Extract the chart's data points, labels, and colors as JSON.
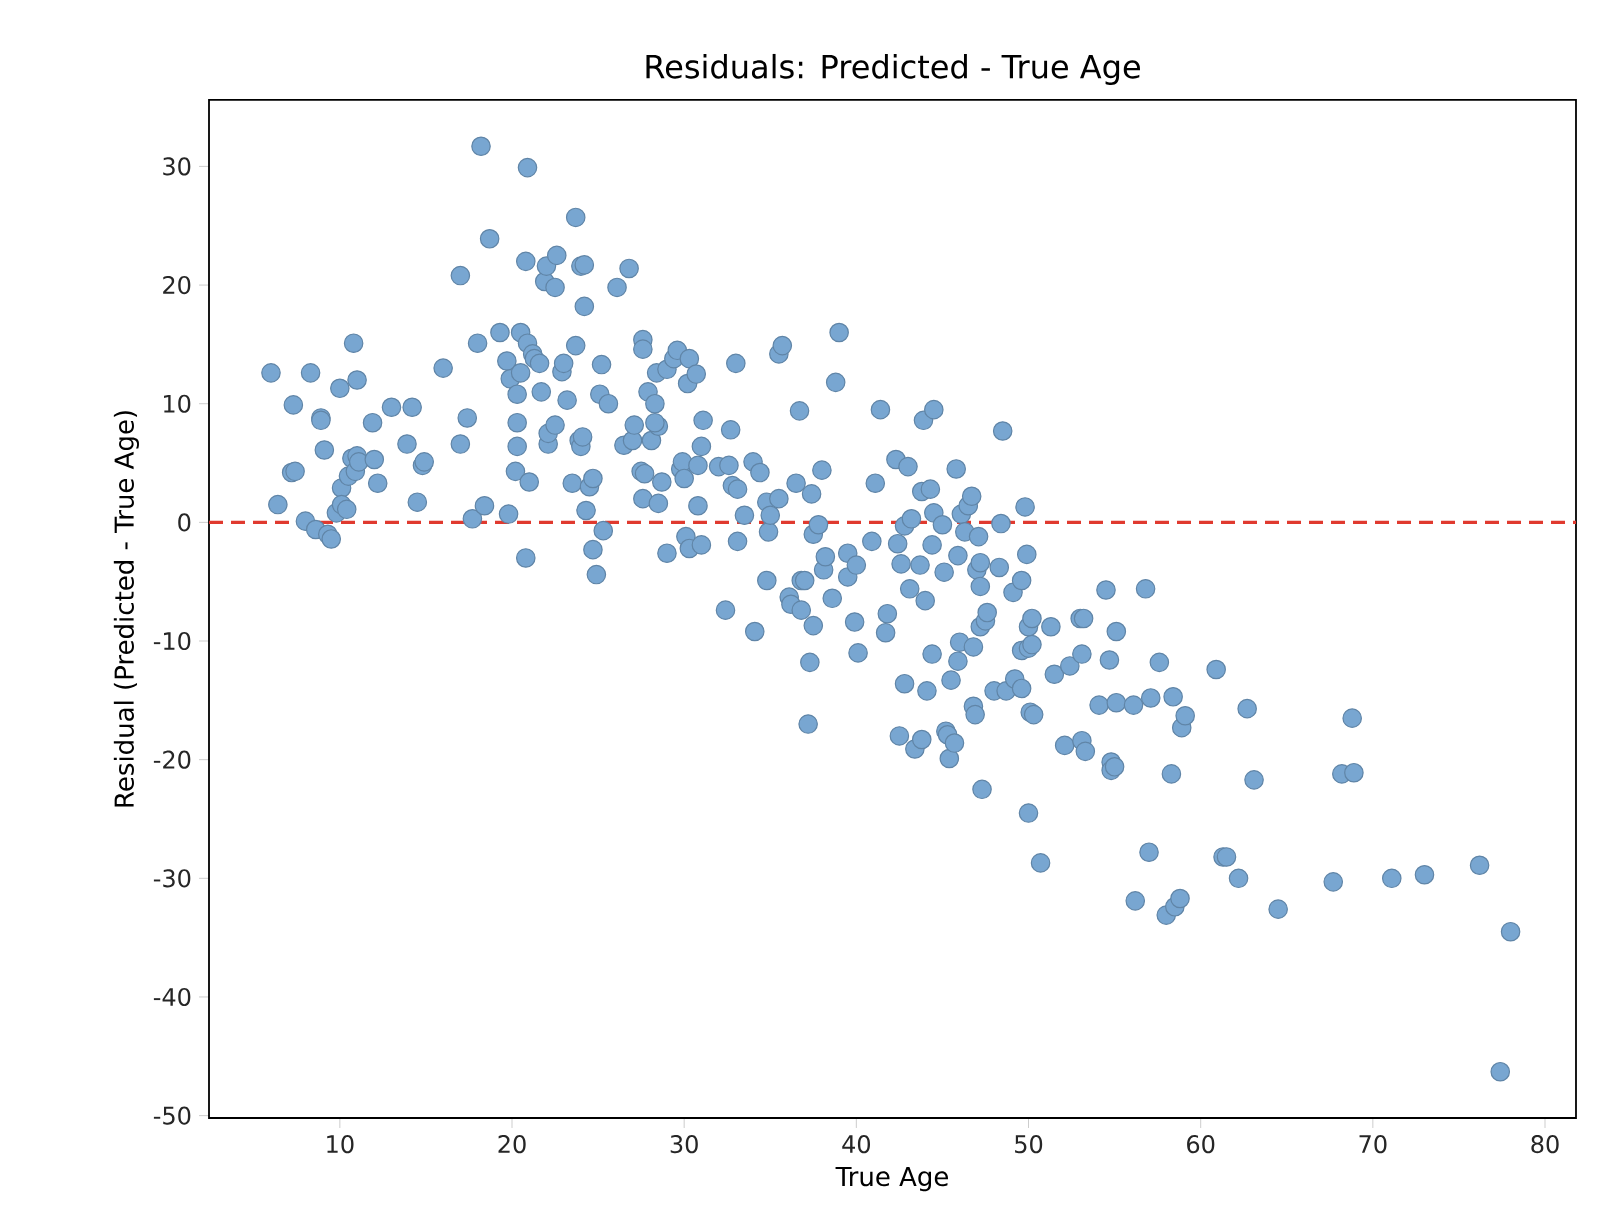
{
  "chart_data": {
    "type": "scatter",
    "title": "Residuals: Predicted - True Age",
    "xlabel": "True Age",
    "ylabel": "Residual (Predicted - True Age)",
    "x": [
      6.0,
      6.4,
      7.3,
      7.2,
      7.4,
      8.3,
      8.0,
      8.9,
      8.9,
      9.1,
      8.6,
      9.3,
      9.5,
      10.0,
      10.1,
      9.8,
      10.1,
      10.4,
      10.5,
      10.8,
      11.0,
      10.7,
      11.0,
      10.9,
      11.1,
      11.9,
      12.0,
      12.2,
      13.0,
      13.9,
      14.2,
      14.8,
      14.9,
      14.5,
      16.0,
      17.0,
      17.0,
      17.4,
      17.7,
      18.0,
      18.2,
      18.4,
      18.7,
      19.3,
      19.7,
      19.8,
      19.9,
      20.2,
      20.3,
      20.3,
      20.3,
      20.5,
      20.5,
      20.8,
      20.9,
      20.8,
      21.0,
      20.9,
      21.2,
      21.3,
      21.6,
      21.7,
      21.9,
      22.0,
      22.1,
      22.1,
      22.5,
      22.6,
      22.5,
      22.9,
      23.0,
      23.2,
      23.5,
      23.7,
      23.7,
      23.9,
      24.0,
      24.2,
      24.2,
      24.0,
      24.1,
      24.3,
      24.5,
      24.7,
      24.7,
      24.9,
      25.1,
      25.2,
      25.3,
      25.6,
      26.1,
      26.5,
      26.8,
      27.0,
      27.1,
      27.6,
      27.6,
      27.5,
      27.7,
      27.6,
      27.9,
      28.1,
      28.3,
      28.5,
      28.4,
      28.3,
      28.5,
      28.7,
      29.0,
      29.0,
      29.4,
      29.6,
      29.8,
      29.9,
      30.0,
      30.2,
      30.3,
      30.1,
      30.3,
      30.7,
      30.8,
      31.0,
      31.1,
      31.0,
      30.8,
      32.0,
      32.4,
      32.6,
      32.7,
      32.8,
      33.1,
      33.0,
      33.1,
      33.5,
      34.0,
      34.1,
      34.4,
      34.8,
      34.8,
      34.9,
      35.0,
      35.5,
      35.5,
      35.7,
      36.1,
      36.2,
      36.5,
      36.8,
      36.8,
      36.7,
      37.0,
      37.2,
      37.3,
      37.4,
      37.5,
      37.5,
      37.8,
      38.0,
      38.1,
      38.2,
      38.6,
      38.8,
      39.0,
      39.5,
      39.5,
      39.9,
      40.0,
      40.1,
      40.9,
      41.1,
      41.4,
      41.7,
      41.8,
      42.3,
      42.5,
      42.4,
      42.6,
      42.8,
      42.8,
      43.0,
      43.1,
      43.2,
      43.4,
      43.7,
      43.8,
      43.8,
      43.9,
      44.0,
      44.1,
      44.3,
      44.4,
      44.4,
      44.5,
      44.5,
      45.1,
      45.0,
      45.2,
      45.3,
      45.4,
      45.5,
      45.7,
      45.9,
      45.9,
      45.8,
      46.0,
      46.1,
      46.3,
      46.5,
      46.7,
      46.8,
      46.8,
      46.9,
      47.0,
      47.1,
      47.2,
      47.2,
      47.2,
      47.3,
      47.5,
      47.6,
      48.0,
      48.3,
      48.4,
      48.5,
      48.7,
      49.1,
      49.2,
      49.6,
      49.6,
      49.6,
      49.8,
      49.9,
      50.0,
      50.0,
      50.0,
      50.2,
      50.2,
      50.1,
      50.3,
      50.7,
      51.3,
      51.5,
      52.1,
      52.4,
      53.0,
      53.1,
      53.1,
      53.2,
      53.3,
      54.1,
      54.5,
      54.7,
      54.8,
      54.8,
      55.0,
      55.1,
      55.1,
      56.1,
      56.2,
      56.8,
      57.0,
      57.1,
      57.6,
      58.0,
      58.3,
      58.4,
      58.5,
      58.8,
      58.9,
      59.1,
      60.9,
      61.3,
      61.5,
      62.2,
      62.7,
      63.1,
      64.5,
      67.7,
      68.2,
      68.8,
      68.9,
      71.1,
      73.0,
      76.2,
      77.4,
      78.0
    ],
    "values": [
      12.6,
      1.5,
      9.9,
      4.2,
      4.3,
      12.6,
      0.1,
      8.8,
      8.6,
      6.1,
      -0.6,
      -1.0,
      -1.4,
      11.3,
      2.9,
      0.8,
      1.5,
      1.1,
      3.9,
      15.1,
      12.0,
      5.4,
      5.6,
      4.3,
      5.1,
      8.4,
      5.3,
      3.3,
      9.7,
      6.6,
      9.7,
      4.8,
      5.1,
      1.7,
      13.0,
      20.8,
      6.6,
      8.8,
      0.3,
      15.1,
      31.7,
      1.4,
      23.9,
      16.0,
      13.6,
      0.7,
      12.1,
      4.3,
      8.4,
      6.4,
      10.8,
      16.0,
      12.6,
      -3.0,
      29.9,
      22.0,
      3.4,
      15.1,
      14.2,
      13.8,
      13.4,
      11.0,
      20.3,
      21.6,
      6.6,
      7.5,
      19.8,
      22.5,
      8.2,
      12.7,
      13.4,
      10.3,
      3.3,
      25.7,
      14.9,
      6.9,
      21.6,
      21.7,
      18.2,
      6.4,
      7.2,
      1.0,
      3.0,
      -2.3,
      3.7,
      -4.4,
      10.8,
      13.3,
      -0.7,
      10.0,
      19.8,
      6.5,
      21.4,
      6.9,
      8.2,
      15.4,
      14.6,
      4.3,
      4.1,
      2.0,
      11.0,
      6.9,
      10.0,
      8.1,
      12.6,
      8.4,
      1.6,
      3.4,
      12.9,
      -2.6,
      13.8,
      14.5,
      4.5,
      5.1,
      3.7,
      11.7,
      13.8,
      -1.2,
      -2.2,
      12.5,
      1.4,
      6.4,
      8.6,
      -1.9,
      4.8,
      4.7,
      -7.4,
      4.8,
      7.8,
      3.1,
      2.8,
      13.4,
      -1.6,
      0.6,
      5.1,
      -9.2,
      4.2,
      -4.9,
      1.7,
      -0.8,
      0.6,
      2.0,
      14.2,
      14.9,
      -6.3,
      -6.9,
      3.3,
      -7.4,
      -4.9,
      9.4,
      -4.9,
      -17.0,
      -11.8,
      2.4,
      -8.7,
      -1.0,
      -0.2,
      4.4,
      -4.0,
      -2.9,
      -6.4,
      11.8,
      16.0,
      -2.6,
      -4.6,
      -8.4,
      -3.6,
      -11.0,
      -1.6,
      3.3,
      9.5,
      -9.3,
      -7.7,
      5.3,
      -18.0,
      -1.8,
      -3.5,
      -13.6,
      -0.3,
      4.7,
      -5.6,
      0.3,
      -19.1,
      -3.6,
      -18.3,
      2.6,
      8.6,
      -6.6,
      -14.2,
      2.8,
      -1.9,
      -11.1,
      9.5,
      0.8,
      -4.2,
      -0.2,
      -17.6,
      -17.9,
      -19.9,
      -13.3,
      -18.6,
      -11.7,
      -2.8,
      4.5,
      -10.1,
      0.7,
      -0.8,
      1.4,
      2.2,
      -15.5,
      -10.5,
      -16.2,
      -4.0,
      -1.2,
      -3.4,
      -5.4,
      -8.8,
      -22.5,
      -8.3,
      -7.6,
      -14.2,
      -3.8,
      -0.1,
      7.7,
      -14.2,
      -5.9,
      -13.2,
      -4.9,
      -10.8,
      -14.0,
      1.3,
      -2.7,
      -8.8,
      -10.6,
      -24.5,
      -8.1,
      -10.3,
      -16.0,
      -16.2,
      -28.7,
      -8.8,
      -12.8,
      -18.8,
      -12.1,
      -8.1,
      -18.4,
      -11.1,
      -8.1,
      -19.3,
      -15.4,
      -5.7,
      -11.6,
      -20.2,
      -20.9,
      -20.6,
      -15.2,
      -9.2,
      -15.4,
      -31.9,
      -5.6,
      -27.8,
      -14.8,
      -11.8,
      -33.1,
      -21.2,
      -14.7,
      -32.4,
      -31.7,
      -17.3,
      -16.3,
      -12.4,
      -28.2,
      -28.2,
      -30.0,
      -15.7,
      -21.7,
      -32.6,
      -30.3,
      -21.2,
      -16.5,
      -21.1,
      -30.0,
      -29.7,
      -28.9,
      -46.3,
      -34.5
    ],
    "color": "#78a6d1",
    "xlim": [
      2.4,
      81.8
    ],
    "ylim": [
      -50.2,
      35.6
    ],
    "xticks": [
      10,
      20,
      30,
      40,
      50,
      60,
      70,
      80
    ],
    "yticks": [
      -50,
      -40,
      -30,
      -20,
      -10,
      0,
      10,
      20,
      30
    ],
    "ref_lines": [
      {
        "axis": "y",
        "value": 0,
        "color": "#e03a2f",
        "line_style": "dashed"
      }
    ]
  }
}
